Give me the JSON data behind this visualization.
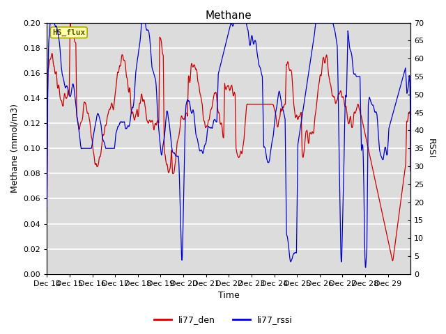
{
  "title": "Methane",
  "xlabel": "Time",
  "ylabel_left": "Methane (mmol/m3)",
  "ylabel_right": "RSSI",
  "ylim_left": [
    0.0,
    0.2
  ],
  "ylim_right": [
    0,
    70
  ],
  "yticks_left": [
    0.0,
    0.02,
    0.04,
    0.06,
    0.08,
    0.1,
    0.12,
    0.14,
    0.16,
    0.18,
    0.2
  ],
  "yticks_right": [
    0,
    5,
    10,
    15,
    20,
    25,
    30,
    35,
    40,
    45,
    50,
    55,
    60,
    65,
    70
  ],
  "xtick_labels": [
    "Dec 14",
    "Dec 15",
    "Dec 16",
    "Dec 17",
    "Dec 18",
    "Dec 19",
    "Dec 20",
    "Dec 21",
    "Dec 22",
    "Dec 23",
    "Dec 24",
    "Dec 25",
    "Dec 26",
    "Dec 27",
    "Dec 28",
    "Dec 29"
  ],
  "color_den": "#cc0000",
  "color_rssi": "#0000cc",
  "legend_label_den": "li77_den",
  "legend_label_rssi": "li77_rssi",
  "box_label": "HS_flux",
  "box_facecolor": "#ffffaa",
  "box_edgecolor": "#aaa800",
  "background_color": "#dcdcdc",
  "grid_color": "#ffffff",
  "title_fontsize": 11,
  "axis_fontsize": 9,
  "tick_fontsize": 8,
  "legend_fontsize": 9
}
